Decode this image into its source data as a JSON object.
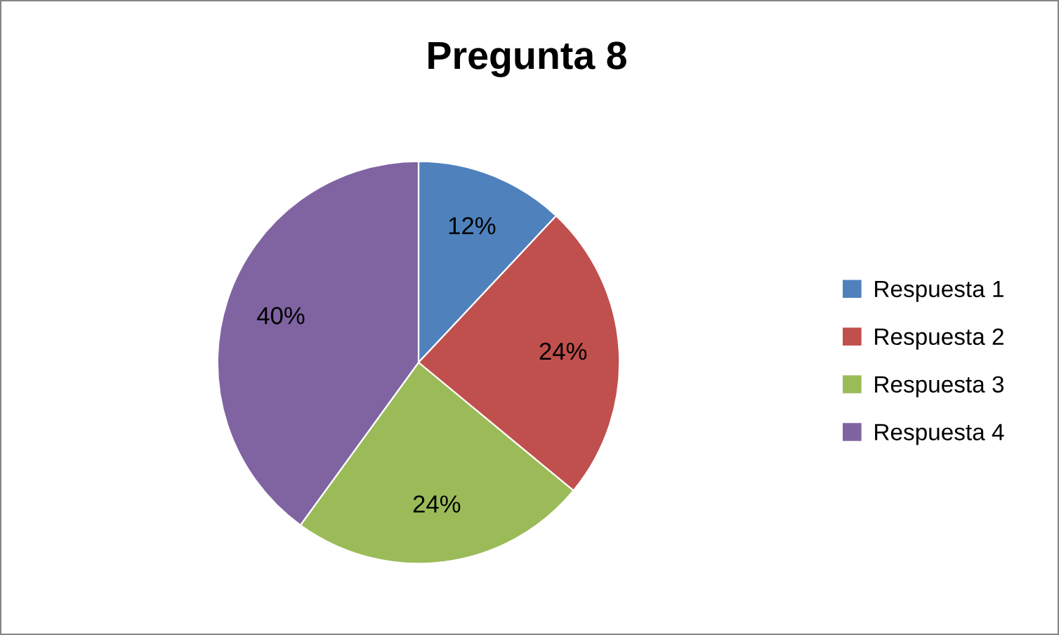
{
  "chart_data": {
    "type": "pie",
    "title": "Pregunta 8",
    "categories": [
      "Respuesta 1",
      "Respuesta 2",
      "Respuesta 3",
      "Respuesta 4"
    ],
    "values": [
      12,
      24,
      24,
      40
    ],
    "colors": [
      "#4f81bd",
      "#c0504d",
      "#9bbb59",
      "#8064a2"
    ],
    "value_labels": [
      "12%",
      "24%",
      "24%",
      "40%"
    ],
    "legend": "right"
  }
}
